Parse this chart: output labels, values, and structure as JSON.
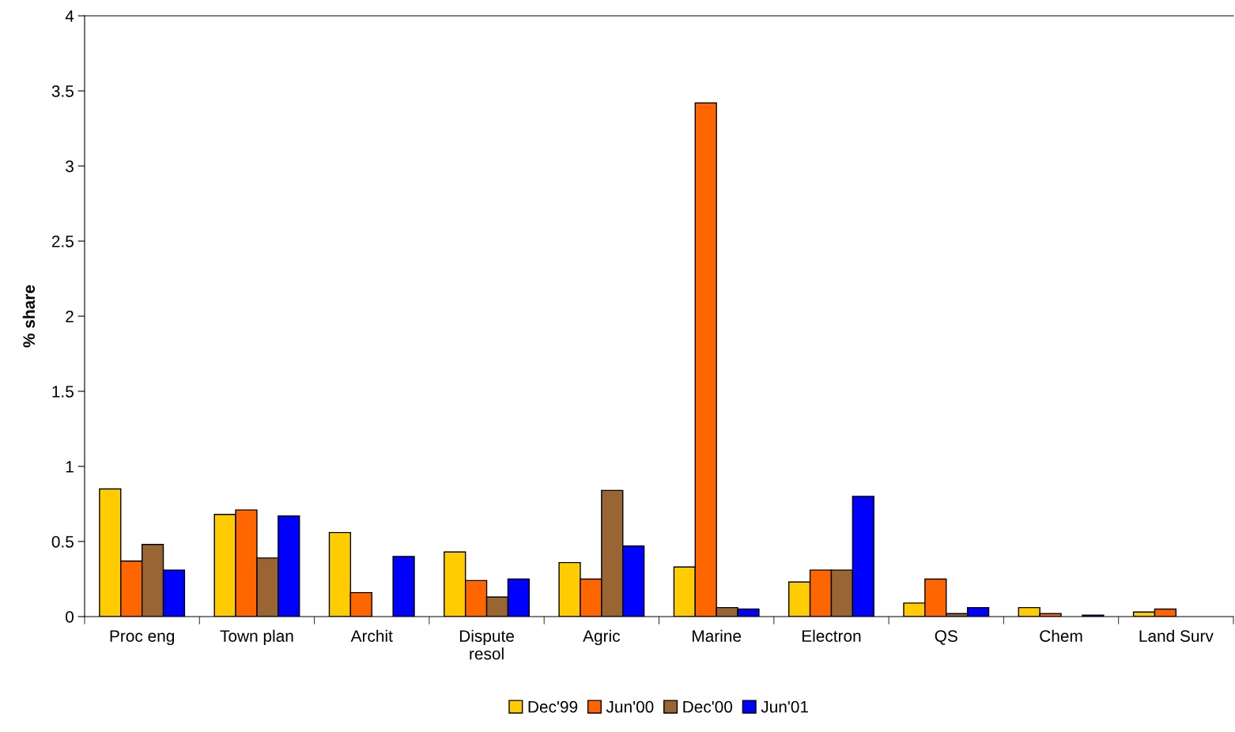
{
  "chart_data": {
    "type": "bar",
    "ylabel": "% share",
    "categories": [
      "Proc eng",
      "Town plan",
      "Archit",
      "Dispute\nresol",
      "Agric",
      "Marine",
      "Electron",
      "QS",
      "Chem",
      "Land Surv"
    ],
    "series": [
      {
        "name": "Dec'99",
        "color": "#ffcc00",
        "values": [
          0.85,
          0.68,
          0.56,
          0.43,
          0.36,
          0.33,
          0.23,
          0.09,
          0.06,
          0.03
        ]
      },
      {
        "name": "Jun'00",
        "color": "#ff6600",
        "values": [
          0.37,
          0.71,
          0.16,
          0.24,
          0.25,
          3.42,
          0.31,
          0.25,
          0.02,
          0.05
        ]
      },
      {
        "name": "Dec'00",
        "color": "#996633",
        "values": [
          0.48,
          0.39,
          null,
          0.13,
          0.84,
          0.06,
          0.31,
          0.02,
          null,
          null
        ]
      },
      {
        "name": "Jun'01",
        "color": "#0000ff",
        "values": [
          0.31,
          0.67,
          0.4,
          0.25,
          0.47,
          0.05,
          0.8,
          0.06,
          0.01,
          null
        ]
      }
    ],
    "ylim": [
      0,
      4
    ],
    "yticks": [
      0,
      0.5,
      1,
      1.5,
      2,
      2.5,
      3,
      3.5,
      4
    ],
    "grid": false,
    "legend": "bottom"
  }
}
